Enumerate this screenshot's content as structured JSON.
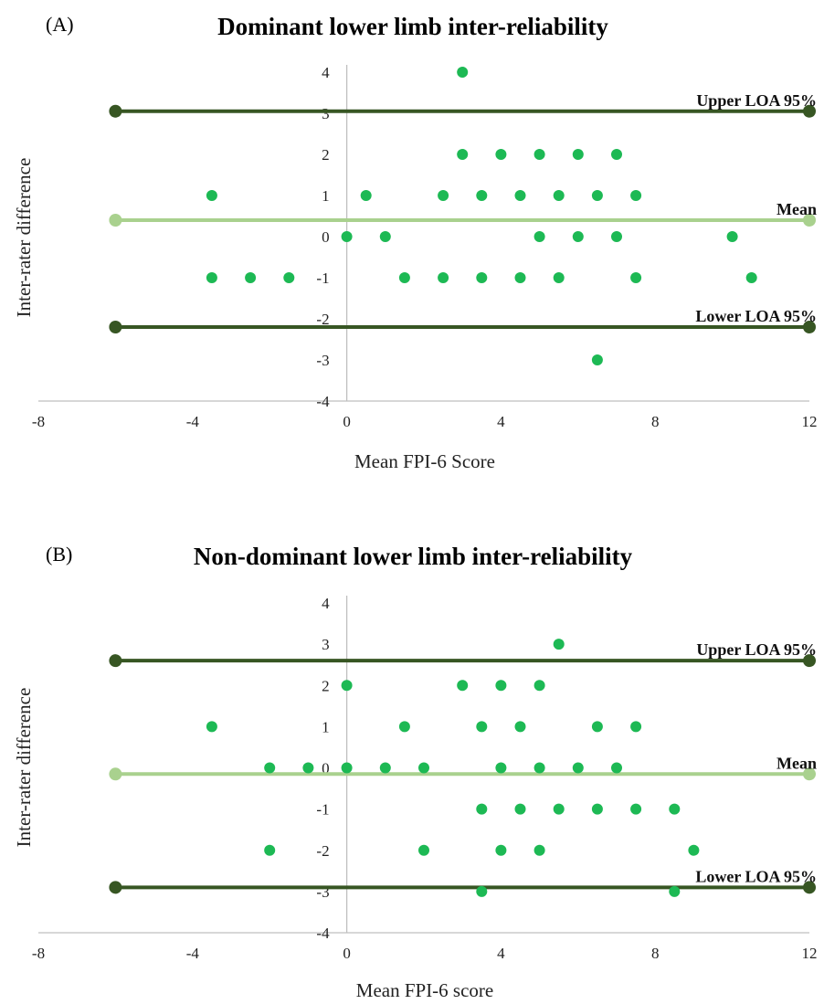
{
  "colors": {
    "point": "#1db954",
    "loa_line": "#375623",
    "mean_line": "#a9d18e",
    "axis": "#bfbfbf"
  },
  "chart_data": [
    {
      "type": "scatter",
      "panel_label": "(A)",
      "title": "Dominant lower limb inter-reliability",
      "xlabel": "Mean FPI-6 Score",
      "ylabel": "Inter-rater difference",
      "xlim": [
        -8,
        12
      ],
      "ylim": [
        -4,
        4
      ],
      "x_ticks": [
        -8,
        -4,
        0,
        4,
        8,
        12
      ],
      "y_ticks": [
        4,
        3,
        2,
        1,
        0,
        -1,
        -2,
        -3,
        -4
      ],
      "reference_lines": [
        {
          "label": "Upper LOA 95%",
          "y": 3.05,
          "x_range": [
            -6,
            12
          ],
          "kind": "loa"
        },
        {
          "label": "Mean",
          "y": 0.4,
          "x_range": [
            -6,
            12
          ],
          "kind": "mean"
        },
        {
          "label": "Lower LOA 95%",
          "y": -2.2,
          "x_range": [
            -6,
            12
          ],
          "kind": "loa"
        }
      ],
      "points": [
        [
          3,
          4
        ],
        [
          3,
          2
        ],
        [
          4,
          2
        ],
        [
          5,
          2
        ],
        [
          6,
          2
        ],
        [
          7,
          2
        ],
        [
          -3.5,
          1
        ],
        [
          0.5,
          1
        ],
        [
          2.5,
          1
        ],
        [
          3.5,
          1
        ],
        [
          4.5,
          1
        ],
        [
          5.5,
          1
        ],
        [
          6.5,
          1
        ],
        [
          7.5,
          1
        ],
        [
          0,
          0
        ],
        [
          1,
          0
        ],
        [
          5,
          0
        ],
        [
          6,
          0
        ],
        [
          7,
          0
        ],
        [
          10,
          0
        ],
        [
          -3.5,
          -1
        ],
        [
          -2.5,
          -1
        ],
        [
          -1.5,
          -1
        ],
        [
          1.5,
          -1
        ],
        [
          2.5,
          -1
        ],
        [
          3.5,
          -1
        ],
        [
          4.5,
          -1
        ],
        [
          5.5,
          -1
        ],
        [
          7.5,
          -1
        ],
        [
          10.5,
          -1
        ],
        [
          6.5,
          -3
        ]
      ]
    },
    {
      "type": "scatter",
      "panel_label": "(B)",
      "title": "Non-dominant lower limb inter-reliability",
      "xlabel": "Mean FPI-6 score",
      "ylabel": "Inter-rater difference",
      "xlim": [
        -8,
        12
      ],
      "ylim": [
        -4,
        4
      ],
      "x_ticks": [
        -8,
        -4,
        0,
        4,
        8,
        12
      ],
      "y_ticks": [
        4,
        3,
        2,
        1,
        0,
        -1,
        -2,
        -3,
        -4
      ],
      "reference_lines": [
        {
          "label": "Upper LOA 95%",
          "y": 2.6,
          "x_range": [
            -6,
            12
          ],
          "kind": "loa"
        },
        {
          "label": "Mean",
          "y": -0.15,
          "x_range": [
            -6,
            12
          ],
          "kind": "mean"
        },
        {
          "label": "Lower LOA 95%",
          "y": -2.9,
          "x_range": [
            -6,
            12
          ],
          "kind": "loa"
        }
      ],
      "points": [
        [
          5.5,
          3
        ],
        [
          0,
          2
        ],
        [
          3,
          2
        ],
        [
          4,
          2
        ],
        [
          5,
          2
        ],
        [
          -3.5,
          1
        ],
        [
          1.5,
          1
        ],
        [
          3.5,
          1
        ],
        [
          4.5,
          1
        ],
        [
          6.5,
          1
        ],
        [
          7.5,
          1
        ],
        [
          -2,
          0
        ],
        [
          -1,
          0
        ],
        [
          0,
          0
        ],
        [
          1,
          0
        ],
        [
          2,
          0
        ],
        [
          4,
          0
        ],
        [
          5,
          0
        ],
        [
          6,
          0
        ],
        [
          7,
          0
        ],
        [
          3.5,
          -1
        ],
        [
          4.5,
          -1
        ],
        [
          5.5,
          -1
        ],
        [
          6.5,
          -1
        ],
        [
          7.5,
          -1
        ],
        [
          8.5,
          -1
        ],
        [
          -2,
          -2
        ],
        [
          2,
          -2
        ],
        [
          4,
          -2
        ],
        [
          5,
          -2
        ],
        [
          9,
          -2
        ],
        [
          3.5,
          -3
        ],
        [
          8.5,
          -3
        ]
      ]
    }
  ]
}
